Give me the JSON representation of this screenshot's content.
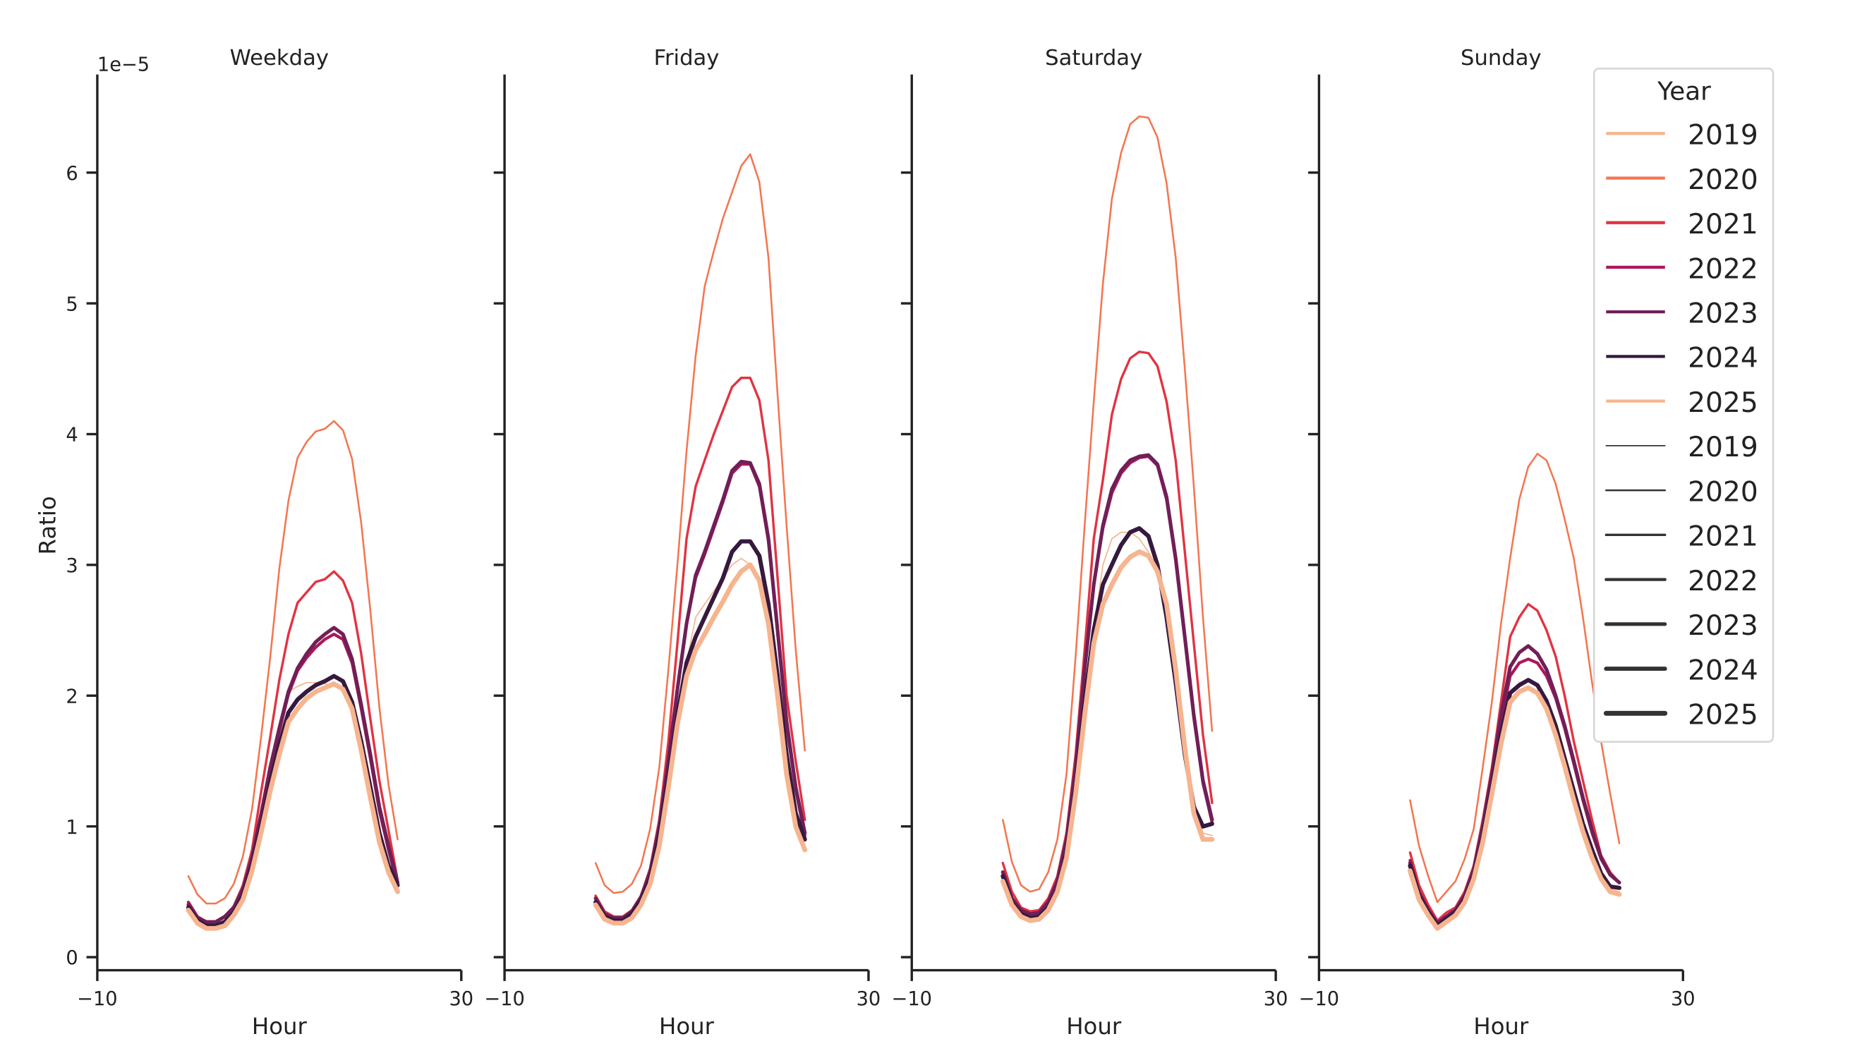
{
  "chart_data": {
    "type": "line",
    "ylabel": "Ratio",
    "xlabel": "Hour",
    "y_offset_label": "1e−5",
    "xlim": [
      -10,
      30
    ],
    "ylim": [
      -0.1,
      6.75
    ],
    "y_scale_factor": 1e-05,
    "xticks": [
      -10,
      30
    ],
    "xtick_labels": [
      "−10",
      "30"
    ],
    "yticks": [
      0,
      1,
      2,
      3,
      4,
      5,
      6
    ],
    "ytick_labels": [
      "0",
      "1",
      "2",
      "3",
      "4",
      "5",
      "6"
    ],
    "grid": false,
    "legend": {
      "title": "Year",
      "placement": "top-right",
      "hue_entries": [
        "2019",
        "2020",
        "2021",
        "2022",
        "2023",
        "2024",
        "2025"
      ],
      "size_entries": [
        "2019",
        "2020",
        "2021",
        "2022",
        "2023",
        "2024",
        "2025"
      ]
    },
    "colors": {
      "2019": "#f6b48f",
      "2020": "#f37651",
      "2021": "#e13342",
      "2022": "#ad1759",
      "2023": "#701f57",
      "2024": "#35193e",
      "2025": "#f6b48f",
      "size_legend": "#333333"
    },
    "x": [
      0,
      1,
      2,
      3,
      4,
      5,
      6,
      7,
      8,
      9,
      10,
      11,
      12,
      13,
      14,
      15,
      16,
      17,
      18,
      19,
      20,
      21,
      22,
      23
    ],
    "panels": [
      {
        "title": "Weekday",
        "series": [
          {
            "name": "2019",
            "values": [
              0.34,
              0.25,
              0.22,
              0.22,
              0.25,
              0.33,
              0.45,
              0.68,
              1.0,
              1.35,
              1.65,
              2.03,
              2.07,
              2.1,
              2.1,
              2.09,
              2.08,
              2.05,
              1.9,
              1.6,
              1.25,
              0.9,
              0.65,
              0.49
            ]
          },
          {
            "name": "2020",
            "values": [
              0.62,
              0.48,
              0.41,
              0.41,
              0.45,
              0.56,
              0.77,
              1.13,
              1.68,
              2.29,
              2.97,
              3.49,
              3.82,
              3.94,
              4.02,
              4.04,
              4.1,
              4.03,
              3.81,
              3.32,
              2.65,
              1.91,
              1.32,
              0.9
            ]
          },
          {
            "name": "2021",
            "values": [
              0.41,
              0.31,
              0.27,
              0.27,
              0.31,
              0.39,
              0.55,
              0.82,
              1.26,
              1.68,
              2.12,
              2.47,
              2.71,
              2.79,
              2.87,
              2.89,
              2.95,
              2.88,
              2.71,
              2.32,
              1.82,
              1.35,
              0.97,
              0.59
            ]
          },
          {
            "name": "2022",
            "values": [
              0.42,
              0.31,
              0.27,
              0.27,
              0.31,
              0.38,
              0.52,
              0.75,
              1.08,
              1.43,
              1.73,
              2.01,
              2.19,
              2.29,
              2.37,
              2.43,
              2.47,
              2.43,
              2.25,
              1.9,
              1.52,
              1.12,
              0.82,
              0.55
            ]
          },
          {
            "name": "2023",
            "values": [
              0.4,
              0.3,
              0.27,
              0.27,
              0.31,
              0.38,
              0.52,
              0.76,
              1.09,
              1.45,
              1.75,
              2.03,
              2.21,
              2.32,
              2.41,
              2.47,
              2.52,
              2.47,
              2.28,
              1.93,
              1.55,
              1.15,
              0.85,
              0.57
            ]
          },
          {
            "name": "2024",
            "values": [
              0.38,
              0.28,
              0.24,
              0.24,
              0.27,
              0.34,
              0.47,
              0.7,
              1.0,
              1.33,
              1.62,
              1.87,
              1.97,
              2.03,
              2.08,
              2.11,
              2.15,
              2.11,
              1.95,
              1.65,
              1.3,
              0.95,
              0.7,
              0.55
            ]
          },
          {
            "name": "2025",
            "values": [
              0.36,
              0.26,
              0.22,
              0.22,
              0.24,
              0.32,
              0.44,
              0.66,
              0.95,
              1.27,
              1.55,
              1.8,
              1.9,
              1.98,
              2.03,
              2.06,
              2.09,
              2.05,
              1.9,
              1.58,
              1.22,
              0.88,
              0.65,
              0.5
            ]
          }
        ]
      },
      {
        "title": "Friday",
        "series": [
          {
            "name": "2019",
            "values": [
              0.41,
              0.3,
              0.27,
              0.27,
              0.31,
              0.41,
              0.58,
              0.9,
              1.38,
              1.85,
              2.25,
              2.6,
              2.7,
              2.8,
              2.9,
              3.0,
              3.05,
              3.0,
              2.85,
              2.5,
              1.95,
              1.4,
              1.0,
              0.85
            ]
          },
          {
            "name": "2020",
            "values": [
              0.72,
              0.55,
              0.49,
              0.5,
              0.56,
              0.7,
              0.98,
              1.45,
              2.2,
              3.0,
              3.87,
              4.6,
              5.13,
              5.4,
              5.65,
              5.85,
              6.05,
              6.14,
              5.93,
              5.35,
              4.3,
              3.3,
              2.35,
              1.58
            ]
          },
          {
            "name": "2021",
            "values": [
              0.47,
              0.35,
              0.31,
              0.31,
              0.36,
              0.47,
              0.68,
              1.05,
              1.65,
              2.4,
              3.2,
              3.6,
              3.8,
              4.0,
              4.18,
              4.36,
              4.43,
              4.43,
              4.26,
              3.8,
              2.9,
              2.0,
              1.5,
              1.05
            ]
          },
          {
            "name": "2022",
            "values": [
              0.45,
              0.33,
              0.3,
              0.3,
              0.35,
              0.46,
              0.65,
              1.0,
              1.5,
              2.05,
              2.55,
              2.9,
              3.08,
              3.28,
              3.48,
              3.7,
              3.77,
              3.77,
              3.6,
              3.18,
              2.48,
              1.78,
              1.28,
              0.93
            ]
          },
          {
            "name": "2023",
            "values": [
              0.45,
              0.33,
              0.3,
              0.3,
              0.35,
              0.46,
              0.65,
              1.0,
              1.5,
              2.05,
              2.55,
              2.92,
              3.1,
              3.3,
              3.5,
              3.72,
              3.79,
              3.78,
              3.62,
              3.2,
              2.5,
              1.8,
              1.3,
              0.95
            ]
          },
          {
            "name": "2024",
            "values": [
              0.42,
              0.31,
              0.28,
              0.28,
              0.33,
              0.43,
              0.6,
              0.92,
              1.38,
              1.85,
              2.25,
              2.45,
              2.6,
              2.75,
              2.9,
              3.1,
              3.18,
              3.18,
              3.07,
              2.7,
              2.15,
              1.55,
              1.1,
              0.9
            ]
          },
          {
            "name": "2025",
            "values": [
              0.4,
              0.29,
              0.26,
              0.26,
              0.3,
              0.4,
              0.56,
              0.85,
              1.3,
              1.78,
              2.15,
              2.35,
              2.47,
              2.6,
              2.72,
              2.85,
              2.95,
              3.0,
              2.88,
              2.55,
              2.0,
              1.4,
              1.0,
              0.82
            ]
          }
        ]
      },
      {
        "title": "Saturday",
        "series": [
          {
            "name": "2019",
            "values": [
              0.55,
              0.38,
              0.3,
              0.27,
              0.28,
              0.35,
              0.5,
              0.8,
              1.3,
              1.95,
              2.5,
              3.0,
              3.2,
              3.25,
              3.25,
              3.2,
              3.1,
              2.95,
              2.7,
              2.2,
              1.65,
              1.2,
              0.95,
              0.93
            ]
          },
          {
            "name": "2020",
            "values": [
              1.05,
              0.73,
              0.55,
              0.5,
              0.52,
              0.65,
              0.9,
              1.4,
              2.3,
              3.3,
              4.25,
              5.15,
              5.8,
              6.15,
              6.37,
              6.43,
              6.42,
              6.27,
              5.92,
              5.35,
              4.5,
              3.6,
              2.6,
              1.73
            ]
          },
          {
            "name": "2021",
            "values": [
              0.72,
              0.5,
              0.38,
              0.35,
              0.36,
              0.45,
              0.62,
              0.95,
              1.55,
              2.35,
              3.2,
              3.65,
              4.15,
              4.42,
              4.58,
              4.63,
              4.62,
              4.52,
              4.25,
              3.8,
              3.1,
              2.4,
              1.7,
              1.18
            ]
          },
          {
            "name": "2022",
            "values": [
              0.65,
              0.45,
              0.36,
              0.33,
              0.34,
              0.42,
              0.58,
              0.9,
              1.45,
              2.2,
              2.85,
              3.28,
              3.55,
              3.7,
              3.78,
              3.82,
              3.83,
              3.76,
              3.5,
              3.03,
              2.43,
              1.83,
              1.33,
              1.03
            ]
          },
          {
            "name": "2023",
            "values": [
              0.65,
              0.45,
              0.36,
              0.33,
              0.34,
              0.42,
              0.58,
              0.9,
              1.45,
              2.2,
              2.85,
              3.3,
              3.58,
              3.72,
              3.8,
              3.83,
              3.84,
              3.77,
              3.52,
              3.05,
              2.45,
              1.85,
              1.35,
              1.05
            ]
          },
          {
            "name": "2024",
            "values": [
              0.62,
              0.42,
              0.33,
              0.3,
              0.31,
              0.38,
              0.52,
              0.8,
              1.3,
              1.95,
              2.5,
              2.85,
              3.0,
              3.15,
              3.25,
              3.28,
              3.22,
              3.0,
              2.6,
              2.1,
              1.55,
              1.15,
              1.0,
              1.02
            ]
          },
          {
            "name": "2025",
            "values": [
              0.58,
              0.4,
              0.31,
              0.28,
              0.29,
              0.36,
              0.5,
              0.76,
              1.25,
              1.85,
              2.4,
              2.7,
              2.85,
              2.98,
              3.06,
              3.1,
              3.07,
              2.95,
              2.7,
              2.2,
              1.6,
              1.1,
              0.9,
              0.9
            ]
          }
        ]
      },
      {
        "title": "Sunday",
        "series": [
          {
            "name": "2019",
            "values": [
              0.68,
              0.45,
              0.33,
              0.25,
              0.3,
              0.35,
              0.45,
              0.62,
              0.92,
              1.3,
              1.7,
              2.0,
              2.1,
              2.12,
              2.08,
              1.95,
              1.75,
              1.5,
              1.25,
              1.0,
              0.8,
              0.62,
              0.52,
              0.5
            ]
          },
          {
            "name": "2020",
            "values": [
              1.2,
              0.85,
              0.62,
              0.42,
              0.5,
              0.58,
              0.75,
              0.98,
              1.45,
              1.95,
              2.55,
              3.05,
              3.5,
              3.75,
              3.85,
              3.8,
              3.62,
              3.35,
              3.05,
              2.6,
              2.1,
              1.65,
              1.25,
              0.87
            ]
          },
          {
            "name": "2021",
            "values": [
              0.8,
              0.55,
              0.4,
              0.28,
              0.34,
              0.38,
              0.5,
              0.7,
              1.05,
              1.45,
              1.95,
              2.45,
              2.6,
              2.7,
              2.65,
              2.5,
              2.3,
              2.0,
              1.65,
              1.35,
              1.05,
              0.78,
              0.65,
              0.57
            ]
          },
          {
            "name": "2022",
            "values": [
              0.74,
              0.5,
              0.37,
              0.26,
              0.31,
              0.36,
              0.47,
              0.66,
              0.98,
              1.36,
              1.8,
              2.15,
              2.25,
              2.28,
              2.25,
              2.15,
              1.98,
              1.75,
              1.48,
              1.2,
              0.95,
              0.75,
              0.63,
              0.57
            ]
          },
          {
            "name": "2023",
            "values": [
              0.72,
              0.49,
              0.36,
              0.26,
              0.31,
              0.36,
              0.47,
              0.67,
              1.0,
              1.4,
              1.85,
              2.22,
              2.33,
              2.38,
              2.32,
              2.2,
              2.0,
              1.77,
              1.5,
              1.22,
              0.97,
              0.76,
              0.63,
              0.57
            ]
          },
          {
            "name": "2024",
            "values": [
              0.7,
              0.47,
              0.34,
              0.24,
              0.29,
              0.34,
              0.44,
              0.62,
              0.92,
              1.3,
              1.7,
              2.02,
              2.08,
              2.12,
              2.08,
              1.96,
              1.77,
              1.52,
              1.27,
              1.02,
              0.82,
              0.64,
              0.54,
              0.53
            ]
          },
          {
            "name": "2025",
            "values": [
              0.66,
              0.44,
              0.32,
              0.22,
              0.27,
              0.32,
              0.42,
              0.6,
              0.88,
              1.25,
              1.63,
              1.95,
              2.03,
              2.06,
              2.02,
              1.9,
              1.7,
              1.46,
              1.2,
              0.96,
              0.76,
              0.6,
              0.5,
              0.48
            ]
          }
        ]
      }
    ]
  }
}
